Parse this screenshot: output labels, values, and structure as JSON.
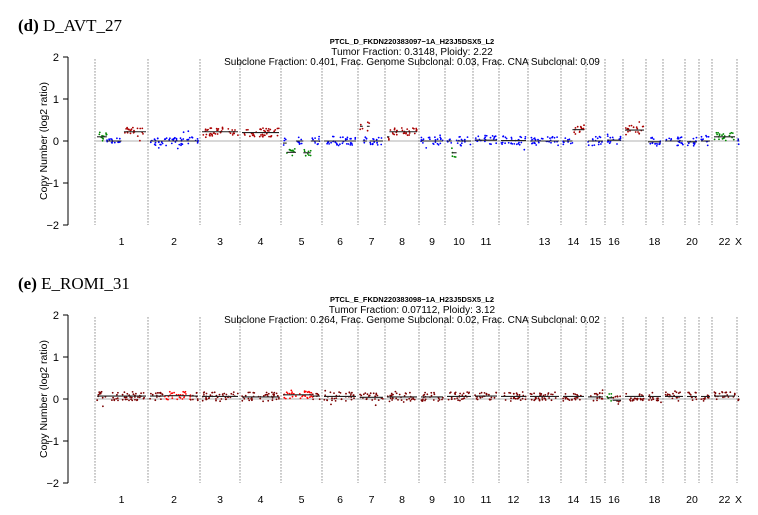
{
  "colors": {
    "neutral": "#0000ff",
    "gain": "#aa0000",
    "loss": "#008800",
    "subclonal": "#ff0000",
    "neutral2": "#7a0000",
    "line": "#222222"
  },
  "chart_data": [
    {
      "type": "scatter",
      "panel_letter": "(d)",
      "panel_name": "D_AVT_27",
      "title": "PTCL_D_FKDN220383097−1A_H23J5DSX5_L2",
      "subtitle1": "Tumor Fraction: 0.3148, Ploidy: 2.22",
      "subtitle2": "Subclone Fraction: 0.401, Frac. Genome Subclonal: 0.03, Frac. CNA Subclonal: 0.09",
      "ylabel": "Copy Number (log2 ratio)",
      "ylim": [
        -2,
        2
      ],
      "yticks": [
        "−2",
        "−1",
        "0",
        "1",
        "2"
      ],
      "chromosomes": [
        "1",
        "2",
        "3",
        "4",
        "5",
        "6",
        "7",
        "8",
        "9",
        "10",
        "11",
        "12",
        "13",
        "14",
        "15",
        "16",
        "17",
        "18",
        "19",
        "20",
        "21",
        "22",
        "X"
      ],
      "xtick_labels": [
        "1",
        "2",
        "3",
        "4",
        "5",
        "6",
        "7",
        "8",
        "9",
        "10",
        "11",
        "",
        "13",
        "14",
        "15",
        "16",
        "",
        "18",
        "",
        "20",
        "",
        "22",
        "X"
      ],
      "segments": [
        {
          "chr": "1",
          "from": 0.0,
          "to": 0.2,
          "value": 0.1,
          "state": "loss"
        },
        {
          "chr": "1",
          "from": 0.2,
          "to": 0.5,
          "value": 0.0,
          "state": "neutral"
        },
        {
          "chr": "1",
          "from": 0.55,
          "to": 1.0,
          "value": 0.22,
          "state": "gain"
        },
        {
          "chr": "2",
          "from": 0.0,
          "to": 1.0,
          "value": 0.0,
          "state": "neutral"
        },
        {
          "chr": "3",
          "from": 0.0,
          "to": 1.0,
          "value": 0.22,
          "state": "gain"
        },
        {
          "chr": "4",
          "from": 0.0,
          "to": 1.0,
          "value": 0.2,
          "state": "gain"
        },
        {
          "chr": "5",
          "from": 0.0,
          "to": 0.1,
          "value": -0.05,
          "state": "neutral"
        },
        {
          "chr": "5",
          "from": 0.1,
          "to": 0.35,
          "value": -0.27,
          "state": "loss"
        },
        {
          "chr": "5",
          "from": 0.35,
          "to": 0.55,
          "value": 0.0,
          "state": "neutral"
        },
        {
          "chr": "5",
          "from": 0.55,
          "to": 0.75,
          "value": -0.28,
          "state": "loss"
        },
        {
          "chr": "5",
          "from": 0.75,
          "to": 1.0,
          "value": 0.0,
          "state": "neutral"
        },
        {
          "chr": "6",
          "from": 0.0,
          "to": 1.0,
          "value": 0.0,
          "state": "neutral"
        },
        {
          "chr": "7",
          "from": 0.0,
          "to": 0.12,
          "value": 0.35,
          "state": "gain"
        },
        {
          "chr": "7",
          "from": 0.12,
          "to": 0.3,
          "value": 0.0,
          "state": "neutral"
        },
        {
          "chr": "7",
          "from": 0.3,
          "to": 0.42,
          "value": 0.35,
          "state": "gain"
        },
        {
          "chr": "7",
          "from": 0.42,
          "to": 1.0,
          "value": 0.0,
          "state": "neutral"
        },
        {
          "chr": "8",
          "from": 0.0,
          "to": 0.08,
          "value": 0.1,
          "state": "gain"
        },
        {
          "chr": "8",
          "from": 0.08,
          "to": 1.0,
          "value": 0.22,
          "state": "gain"
        },
        {
          "chr": "9",
          "from": 0.0,
          "to": 1.0,
          "value": 0.0,
          "state": "neutral"
        },
        {
          "chr": "10",
          "from": 0.0,
          "to": 0.2,
          "value": 0.0,
          "state": "neutral"
        },
        {
          "chr": "10",
          "from": 0.2,
          "to": 0.4,
          "value": -0.28,
          "state": "loss"
        },
        {
          "chr": "10",
          "from": 0.4,
          "to": 1.0,
          "value": 0.0,
          "state": "neutral"
        },
        {
          "chr": "11",
          "from": 0.0,
          "to": 1.0,
          "value": 0.02,
          "state": "neutral"
        },
        {
          "chr": "12",
          "from": 0.0,
          "to": 1.0,
          "value": 0.01,
          "state": "neutral"
        },
        {
          "chr": "13",
          "from": 0.0,
          "to": 1.0,
          "value": 0.0,
          "state": "neutral"
        },
        {
          "chr": "14",
          "from": 0.0,
          "to": 0.45,
          "value": 0.0,
          "state": "neutral"
        },
        {
          "chr": "14",
          "from": 0.45,
          "to": 1.0,
          "value": 0.27,
          "state": "gain"
        },
        {
          "chr": "15",
          "from": 0.0,
          "to": 1.0,
          "value": 0.0,
          "state": "neutral"
        },
        {
          "chr": "16",
          "from": 0.0,
          "to": 1.0,
          "value": 0.02,
          "state": "neutral"
        },
        {
          "chr": "17",
          "from": 0.0,
          "to": 1.0,
          "value": 0.26,
          "state": "gain"
        },
        {
          "chr": "18",
          "from": 0.0,
          "to": 1.0,
          "value": -0.02,
          "state": "neutral"
        },
        {
          "chr": "19",
          "from": 0.0,
          "to": 1.0,
          "value": 0.0,
          "state": "neutral"
        },
        {
          "chr": "20",
          "from": 0.0,
          "to": 1.0,
          "value": -0.02,
          "state": "neutral"
        },
        {
          "chr": "21",
          "from": 0.0,
          "to": 1.0,
          "value": 0.0,
          "state": "neutral"
        },
        {
          "chr": "22",
          "from": 0.0,
          "to": 1.0,
          "value": 0.1,
          "state": "loss"
        },
        {
          "chr": "X",
          "from": 0.0,
          "to": 1.0,
          "value": 0.03,
          "state": "neutral"
        }
      ]
    },
    {
      "type": "scatter",
      "panel_letter": "(e)",
      "panel_name": "E_ROMI_31",
      "title": "PTCL_E_FKDN220383098−1A_H23J5DSX5_L2",
      "subtitle1": "Tumor Fraction: 0.07112, Ploidy: 3.12",
      "subtitle2": "Subclone Fraction: 0.264, Frac. Genome Subclonal: 0.02, Frac. CNA Subclonal: 0.02",
      "ylabel": "Copy Number (log2 ratio)",
      "ylim": [
        -2,
        2
      ],
      "yticks": [
        "−2",
        "−1",
        "0",
        "1",
        "2"
      ],
      "chromosomes": [
        "1",
        "2",
        "3",
        "4",
        "5",
        "6",
        "7",
        "8",
        "9",
        "10",
        "11",
        "12",
        "13",
        "14",
        "15",
        "16",
        "17",
        "18",
        "19",
        "20",
        "21",
        "22",
        "X"
      ],
      "xtick_labels": [
        "1",
        "2",
        "3",
        "4",
        "5",
        "6",
        "7",
        "8",
        "9",
        "10",
        "11",
        "12",
        "13",
        "14",
        "15",
        "16",
        "",
        "18",
        "",
        "20",
        "",
        "22",
        "X"
      ],
      "segments": [
        {
          "chr": "1",
          "from": 0.0,
          "to": 1.0,
          "value": 0.07,
          "state": "neutral2"
        },
        {
          "chr": "2",
          "from": 0.0,
          "to": 0.3,
          "value": 0.07,
          "state": "neutral2"
        },
        {
          "chr": "2",
          "from": 0.3,
          "to": 0.85,
          "value": 0.08,
          "state": "subclonal"
        },
        {
          "chr": "2",
          "from": 0.85,
          "to": 1.0,
          "value": 0.07,
          "state": "neutral2"
        },
        {
          "chr": "3",
          "from": 0.0,
          "to": 1.0,
          "value": 0.06,
          "state": "neutral2"
        },
        {
          "chr": "4",
          "from": 0.0,
          "to": 1.0,
          "value": 0.05,
          "state": "neutral2"
        },
        {
          "chr": "5",
          "from": 0.0,
          "to": 0.8,
          "value": 0.1,
          "state": "subclonal"
        },
        {
          "chr": "5",
          "from": 0.8,
          "to": 1.0,
          "value": 0.07,
          "state": "neutral2"
        },
        {
          "chr": "6",
          "from": 0.0,
          "to": 1.0,
          "value": 0.06,
          "state": "neutral2"
        },
        {
          "chr": "7",
          "from": 0.0,
          "to": 1.0,
          "value": 0.04,
          "state": "neutral2"
        },
        {
          "chr": "8",
          "from": 0.0,
          "to": 1.0,
          "value": 0.05,
          "state": "neutral2"
        },
        {
          "chr": "9",
          "from": 0.0,
          "to": 1.0,
          "value": 0.05,
          "state": "neutral2"
        },
        {
          "chr": "10",
          "from": 0.0,
          "to": 1.0,
          "value": 0.06,
          "state": "neutral2"
        },
        {
          "chr": "11",
          "from": 0.0,
          "to": 1.0,
          "value": 0.07,
          "state": "neutral2"
        },
        {
          "chr": "12",
          "from": 0.0,
          "to": 1.0,
          "value": 0.06,
          "state": "neutral2"
        },
        {
          "chr": "13",
          "from": 0.0,
          "to": 1.0,
          "value": 0.06,
          "state": "neutral2"
        },
        {
          "chr": "14",
          "from": 0.0,
          "to": 1.0,
          "value": 0.06,
          "state": "neutral2"
        },
        {
          "chr": "15",
          "from": 0.0,
          "to": 1.0,
          "value": 0.05,
          "state": "neutral2"
        },
        {
          "chr": "16",
          "from": 0.0,
          "to": 0.4,
          "value": 0.03,
          "state": "loss"
        },
        {
          "chr": "16",
          "from": 0.4,
          "to": 1.0,
          "value": -0.03,
          "state": "neutral2"
        },
        {
          "chr": "17",
          "from": 0.0,
          "to": 1.0,
          "value": 0.06,
          "state": "neutral2"
        },
        {
          "chr": "18",
          "from": 0.0,
          "to": 1.0,
          "value": 0.06,
          "state": "neutral2"
        },
        {
          "chr": "19",
          "from": 0.0,
          "to": 1.0,
          "value": 0.06,
          "state": "neutral2"
        },
        {
          "chr": "20",
          "from": 0.0,
          "to": 1.0,
          "value": 0.06,
          "state": "neutral2"
        },
        {
          "chr": "21",
          "from": 0.0,
          "to": 1.0,
          "value": 0.06,
          "state": "neutral2"
        },
        {
          "chr": "22",
          "from": 0.0,
          "to": 1.0,
          "value": 0.07,
          "state": "neutral2"
        },
        {
          "chr": "X",
          "from": 0.0,
          "to": 1.0,
          "value": 0.06,
          "state": "neutral2"
        }
      ]
    }
  ]
}
